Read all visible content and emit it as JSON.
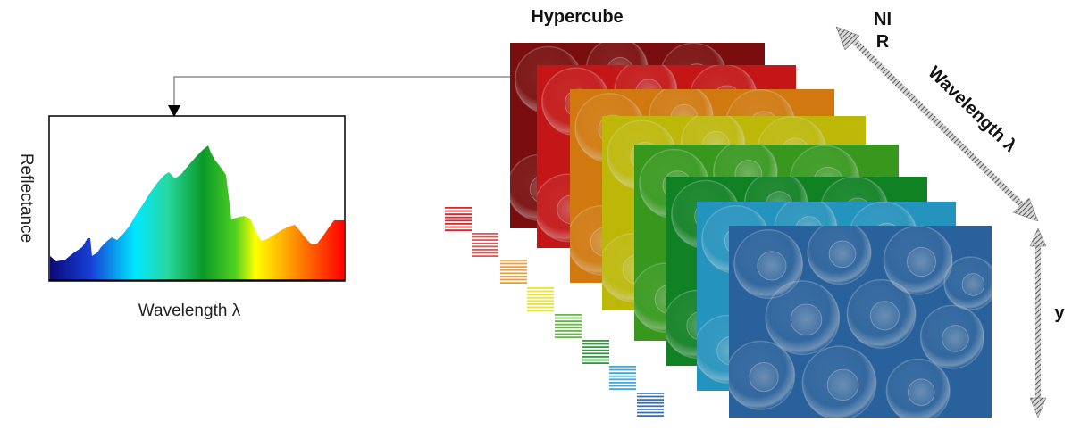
{
  "diagram": {
    "cube_title": "Hypercube",
    "nir_label_line1": "NI",
    "nir_label_line2": "R",
    "wavelength_axis_label": "Wavelength λ",
    "y_axis_label": "y",
    "spectrum": {
      "x_label": "Wavelength λ",
      "y_label": "Reflectance"
    },
    "band_colors": [
      "#8b1010",
      "#e01a1a",
      "#ee8a10",
      "#d8d20a",
      "#3fae22",
      "#13942a",
      "#2aa8d8",
      "#2f6fb2"
    ],
    "stripe_colors": [
      "#e02525",
      "#e05555",
      "#eda03a",
      "#e8e23c",
      "#64b845",
      "#2e9a3c",
      "#46a6dc",
      "#3a6fb5"
    ]
  }
}
